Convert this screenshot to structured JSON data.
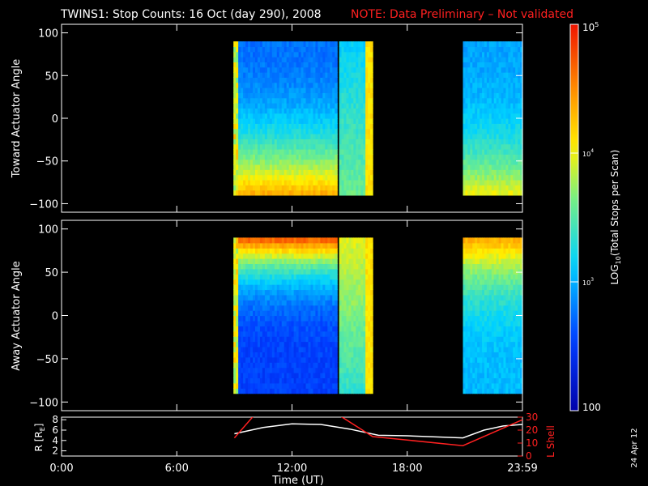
{
  "chart_data": {
    "type": "heatmap",
    "title": "TWINS1: Stop Counts: 16 Oct (day 290), 2008",
    "note": "NOTE: Data Preliminary – Not validated",
    "colorbar": {
      "label": "LOG10(Total Stops per Scan)",
      "label_main": "LOG",
      "label_sub": "10",
      "label_rest": "(Total Stops per Scan)",
      "ticks": [
        {
          "base": "100",
          "exp": ""
        },
        {
          "base": "10",
          "exp": "3"
        },
        {
          "base": "10",
          "exp": "4"
        },
        {
          "base": "10",
          "exp": "5"
        }
      ],
      "log_range": [
        2,
        5
      ]
    },
    "panels": [
      {
        "ylabel": "Toward Actuator Angle",
        "ylim": [
          -110,
          110
        ],
        "yticks": [
          "100",
          "50",
          "0",
          "−50",
          "−100"
        ],
        "data_segments": [
          {
            "t_start": 8.95,
            "t_end": 14.35,
            "angle_range": [
              -90,
              90
            ]
          },
          {
            "t_start": 14.45,
            "t_end": 16.2,
            "angle_range": [
              -90,
              90
            ]
          },
          {
            "t_start": 20.9,
            "t_end": 24.0,
            "angle_range": [
              -90,
              90
            ]
          }
        ]
      },
      {
        "ylabel": "Away Actuator Angle",
        "ylim": [
          -110,
          110
        ],
        "yticks": [
          "100",
          "50",
          "0",
          "−50",
          "−100"
        ],
        "data_segments": [
          {
            "t_start": 8.95,
            "t_end": 14.35,
            "angle_range": [
              -90,
              90
            ]
          },
          {
            "t_start": 14.45,
            "t_end": 16.2,
            "angle_range": [
              -90,
              90
            ]
          },
          {
            "t_start": 20.9,
            "t_end": 24.0,
            "angle_range": [
              -90,
              90
            ]
          }
        ]
      }
    ],
    "orbit_panel": {
      "ylabel_left": "R [R",
      "ylabel_left_sub": "E",
      "ylabel_left_end": "]",
      "ylabel_right": "L Shell",
      "left_ylim": [
        1,
        8.5
      ],
      "right_ylim": [
        0,
        30
      ],
      "left_ticks": [
        "8",
        "6",
        "4",
        "2"
      ],
      "right_ticks": [
        "30",
        "20",
        "10",
        "0"
      ],
      "R_series": {
        "name": "R",
        "color": "#ffffff",
        "t": [
          9.0,
          10.5,
          12.0,
          13.5,
          15.0,
          16.5,
          18.0,
          20.9,
          22.0,
          23.0,
          24.0
        ],
        "values": [
          5.3,
          6.5,
          7.2,
          7.1,
          6.2,
          5.0,
          4.9,
          4.5,
          6.0,
          6.8,
          7.1
        ]
      },
      "L_series": {
        "name": "L Shell",
        "color": "#ff2020",
        "t": [
          9.0,
          10.0,
          14.5,
          16.2,
          20.9,
          24.0
        ],
        "values": [
          14,
          31,
          31,
          15,
          8,
          28
        ]
      }
    },
    "xaxis": {
      "xlabel": "Time (UT)",
      "xlim": [
        0,
        24
      ],
      "tick_labels": [
        "0:00",
        "6:00",
        "12:00",
        "18:00",
        "23:59"
      ],
      "tick_hours": [
        0,
        6,
        12,
        18,
        24
      ]
    },
    "date_stamp": "24 Apr 12"
  }
}
